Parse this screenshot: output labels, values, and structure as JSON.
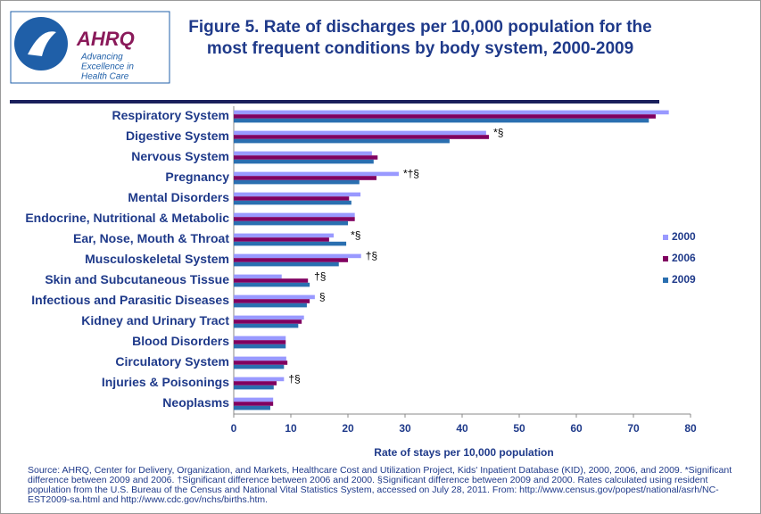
{
  "logo": {
    "name": "AHRQ",
    "tagline": [
      "Advancing",
      "Excellence in",
      "Health Care"
    ]
  },
  "chart_data": {
    "type": "hbar",
    "title": "Figure 5. Rate of discharges per 10,000 population for the most frequent conditions by body system, 2000-2009",
    "categories": [
      "Respiratory System",
      "Digestive System",
      "Nervous System",
      "Pregnancy",
      "Mental Disorders",
      "Endocrine, Nutritional & Metabolic",
      "Ear, Nose, Mouth & Throat",
      "Musculoskeletal System",
      "Skin and Subcutaneous Tissue",
      "Infectious and Parasitic Diseases",
      "Kidney and Urinary Tract",
      "Blood Disorders",
      "Circulatory System",
      "Injuries & Poisonings",
      "Neoplasms"
    ],
    "series": [
      {
        "name": "2000",
        "color": "#9999ff",
        "values": [
          76.2,
          44.2,
          24.2,
          28.9,
          22.2,
          21.2,
          17.5,
          22.3,
          8.4,
          14.2,
          12.3,
          9.1,
          9.2,
          8.8,
          6.9
        ]
      },
      {
        "name": "2006",
        "color": "#800060",
        "values": [
          73.9,
          44.7,
          25.2,
          25.0,
          20.2,
          21.2,
          16.7,
          20.0,
          13.0,
          13.3,
          11.9,
          9.1,
          9.4,
          7.5,
          6.9
        ]
      },
      {
        "name": "2009",
        "color": "#2a6fb0",
        "values": [
          72.7,
          37.8,
          24.5,
          22.0,
          20.6,
          20.0,
          19.7,
          18.4,
          13.3,
          12.8,
          11.3,
          9.1,
          8.8,
          7.0,
          6.4
        ]
      }
    ],
    "annotations": [
      null,
      "*§",
      null,
      "*†§",
      null,
      null,
      "*§",
      "†§",
      "†§",
      "§",
      null,
      null,
      null,
      "†§",
      null
    ],
    "xlim": [
      0,
      80
    ],
    "xticks": [
      0,
      10,
      20,
      30,
      40,
      50,
      60,
      70,
      80
    ],
    "xlabel": "Rate of stays per 10,000 population",
    "source": "Source: AHRQ, Center for Delivery, Organization, and Markets, Healthcare Cost and Utilization Project, Kids' Inpatient Database (KID), 2000, 2006, and 2009. *Significant difference between 2009 and 2006.  †Significant difference between 2006 and 2000. §Significant difference between 2009 and 2000. Rates calculated using resident population from the U.S. Bureau of the Census and National Vital Statistics System, accessed on July 28, 2011. From: http://www.census.gov/popest/national/asrh/NC-EST2009-sa.html and http://www.cdc.gov/nchs/births.htm."
  }
}
